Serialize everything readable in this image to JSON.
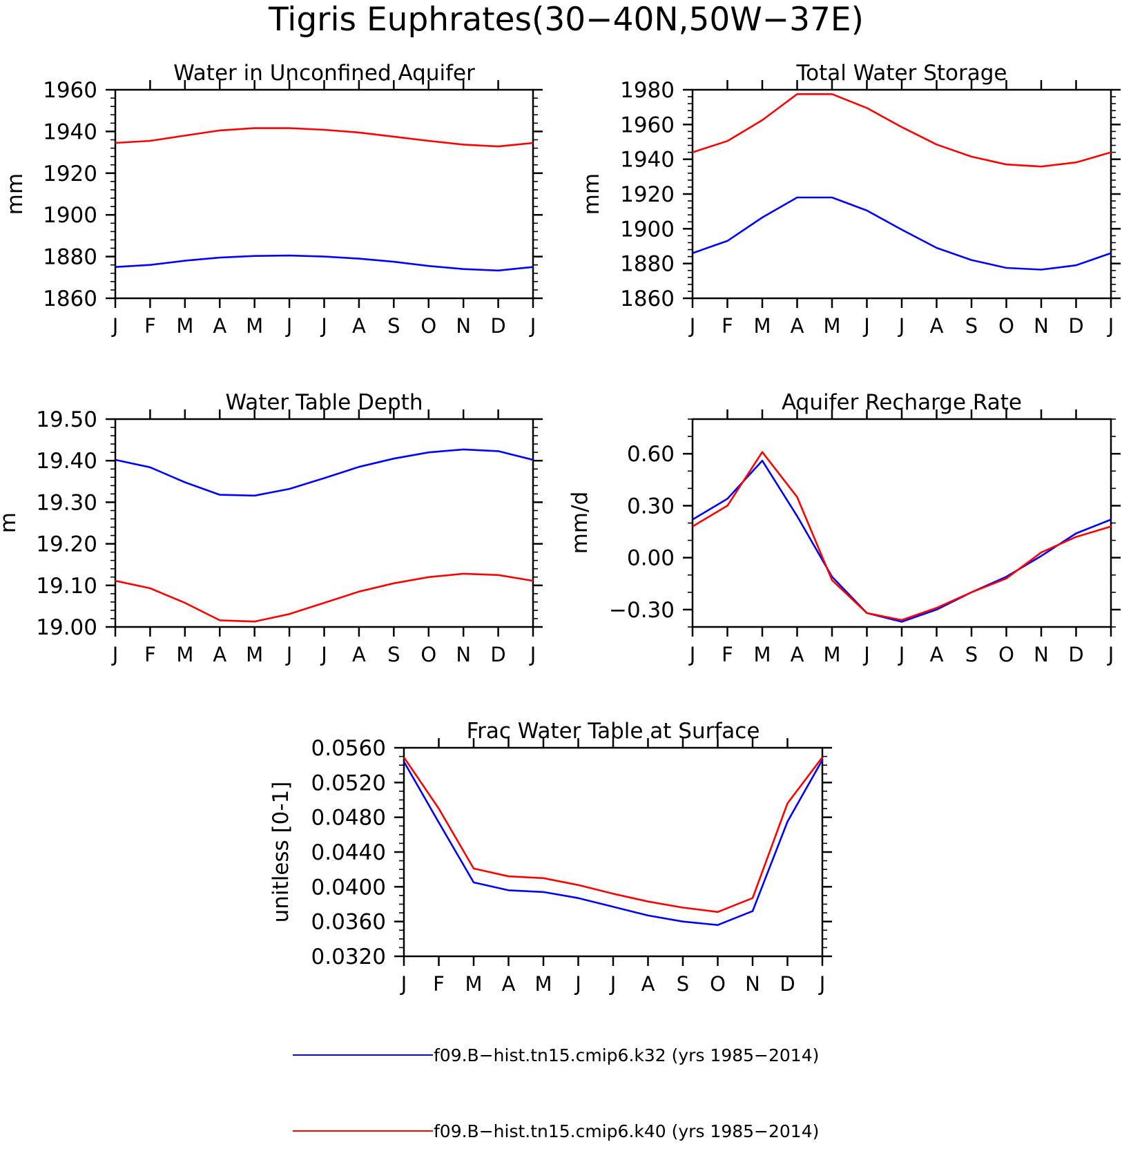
{
  "title": "Tigris Euphrates(30-40N,50W-37E)",
  "months": [
    "J",
    "F",
    "M",
    "A",
    "M",
    "J",
    "J",
    "A",
    "S",
    "O",
    "N",
    "D",
    "J"
  ],
  "colors": {
    "k32": "#0000ff",
    "k40": "#ff0000",
    "axis": "#000000"
  },
  "legend": [
    {
      "label": "f09.B-hist.tn15.cmip6.k32 (yrs 1985-2014)",
      "color": "#0000ff"
    },
    {
      "label": "f09.B-hist.tn15.cmip6.k40 (yrs 1985-2014)",
      "color": "#ff0000"
    }
  ],
  "chart_data": [
    {
      "type": "line",
      "title": "Water in Unconfined Aquifer",
      "ylabel": "mm",
      "ylim": [
        1860,
        1960
      ],
      "yticks": [
        1860,
        1880,
        1900,
        1920,
        1940,
        1960
      ],
      "ytick_labels": [
        "1860",
        "1880",
        "1900",
        "1920",
        "1940",
        "1960"
      ],
      "yminor": 5,
      "categories": [
        "J",
        "F",
        "M",
        "A",
        "M",
        "J",
        "J",
        "A",
        "S",
        "O",
        "N",
        "D",
        "J"
      ],
      "series": [
        {
          "color": "#0000ff",
          "values": [
            1875,
            1876,
            1878,
            1879.5,
            1880.3,
            1880.5,
            1880,
            1879,
            1877.5,
            1875.5,
            1874,
            1873.3,
            1875
          ]
        },
        {
          "color": "#ff0000",
          "values": [
            1934.5,
            1935.5,
            1938,
            1940.5,
            1941.6,
            1941.6,
            1940.8,
            1939.5,
            1937.5,
            1935.5,
            1933.7,
            1932.8,
            1934.5
          ]
        }
      ]
    },
    {
      "type": "line",
      "title": "Total Water Storage",
      "ylabel": "mm",
      "ylim": [
        1860,
        1980
      ],
      "yticks": [
        1860,
        1880,
        1900,
        1920,
        1940,
        1960,
        1980
      ],
      "ytick_labels": [
        "1860",
        "1880",
        "1900",
        "1920",
        "1940",
        "1960",
        "1980"
      ],
      "yminor": 5,
      "categories": [
        "J",
        "F",
        "M",
        "A",
        "M",
        "J",
        "J",
        "A",
        "S",
        "O",
        "N",
        "D",
        "J"
      ],
      "series": [
        {
          "color": "#0000ff",
          "values": [
            1886,
            1893,
            1906.5,
            1918,
            1918,
            1910.5,
            1899.5,
            1889,
            1882,
            1877.5,
            1876.5,
            1879,
            1886
          ]
        },
        {
          "color": "#ff0000",
          "values": [
            1944,
            1950.5,
            1962.5,
            1977.5,
            1977.5,
            1969.5,
            1958.5,
            1948.5,
            1941.5,
            1937,
            1935.8,
            1938.2,
            1944
          ]
        }
      ]
    },
    {
      "type": "line",
      "title": "Water Table Depth",
      "ylabel": "m",
      "ylim": [
        19.0,
        19.5
      ],
      "yticks": [
        19.0,
        19.1,
        19.2,
        19.3,
        19.4,
        19.5
      ],
      "ytick_labels": [
        "19.00",
        "19.10",
        "19.20",
        "19.30",
        "19.40",
        "19.50"
      ],
      "yminor": 5,
      "categories": [
        "J",
        "F",
        "M",
        "A",
        "M",
        "J",
        "J",
        "A",
        "S",
        "O",
        "N",
        "D",
        "J"
      ],
      "series": [
        {
          "color": "#0000ff",
          "values": [
            19.402,
            19.384,
            19.348,
            19.318,
            19.316,
            19.332,
            19.358,
            19.385,
            19.405,
            19.42,
            19.427,
            19.423,
            19.402
          ]
        },
        {
          "color": "#ff0000",
          "values": [
            19.111,
            19.093,
            19.058,
            19.016,
            19.013,
            19.031,
            19.058,
            19.085,
            19.105,
            19.12,
            19.128,
            19.125,
            19.111
          ]
        }
      ]
    },
    {
      "type": "line",
      "title": "Aquifer Recharge Rate",
      "ylabel": "mm/d",
      "ylim": [
        -0.4,
        0.8
      ],
      "yticks": [
        -0.3,
        0.0,
        0.3,
        0.6
      ],
      "ytick_labels": [
        "-0.30",
        "0.00",
        "0.30",
        "0.60"
      ],
      "yminor_step": 0.1,
      "categories": [
        "J",
        "F",
        "M",
        "A",
        "M",
        "J",
        "J",
        "A",
        "S",
        "O",
        "N",
        "D",
        "J"
      ],
      "series": [
        {
          "color": "#0000ff",
          "values": [
            0.22,
            0.34,
            0.56,
            0.24,
            -0.11,
            -0.32,
            -0.37,
            -0.3,
            -0.2,
            -0.11,
            0.01,
            0.14,
            0.22
          ]
        },
        {
          "color": "#ff0000",
          "values": [
            0.18,
            0.3,
            0.61,
            0.35,
            -0.13,
            -0.32,
            -0.36,
            -0.29,
            -0.2,
            -0.12,
            0.03,
            0.12,
            0.18
          ]
        }
      ]
    },
    {
      "type": "line",
      "title": "Frac Water Table at Surface",
      "ylabel": "unitless [0-1]",
      "ylim": [
        0.032,
        0.056
      ],
      "yticks": [
        0.032,
        0.036,
        0.04,
        0.044,
        0.048,
        0.052,
        0.056
      ],
      "ytick_labels": [
        "0.0320",
        "0.0360",
        "0.0400",
        "0.0440",
        "0.0480",
        "0.0520",
        "0.0560"
      ],
      "yminor": 4,
      "categories": [
        "J",
        "F",
        "M",
        "A",
        "M",
        "J",
        "J",
        "A",
        "S",
        "O",
        "N",
        "D",
        "J"
      ],
      "series": [
        {
          "color": "#0000ff",
          "values": [
            0.0544,
            0.0474,
            0.0405,
            0.0396,
            0.0394,
            0.0387,
            0.0377,
            0.0367,
            0.036,
            0.0356,
            0.0372,
            0.0475,
            0.0546
          ]
        },
        {
          "color": "#ff0000",
          "values": [
            0.0549,
            0.049,
            0.0421,
            0.0412,
            0.041,
            0.0402,
            0.0392,
            0.0383,
            0.0376,
            0.0371,
            0.0387,
            0.0496,
            0.0549
          ]
        }
      ]
    }
  ]
}
